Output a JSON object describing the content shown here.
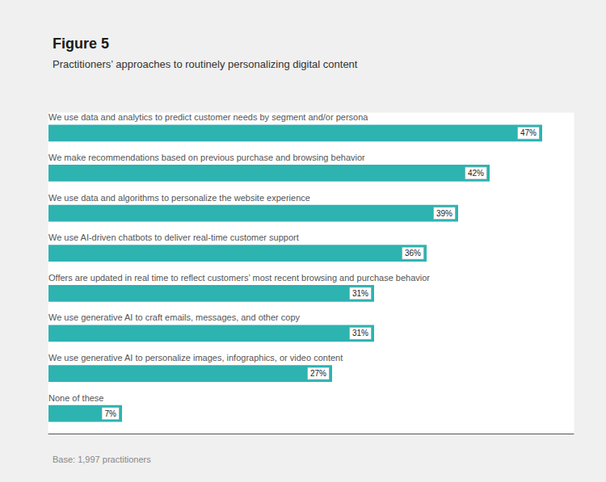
{
  "chart_data": {
    "type": "bar",
    "orientation": "horizontal",
    "title": "Figure 5",
    "subtitle": "Practitioners’ approaches to routinely personalizing digital content",
    "annotations": [
      "Base: 1,997 practitioners"
    ],
    "categories": [
      "We use data and analytics to predict customer needs by segment and/or persona",
      "We make recommendations based on previous purchase and browsing behavior",
      "We use data and algorithms to personalize the website experience",
      "We use AI-driven chatbots to deliver real-time customer support",
      "Offers are updated in real time to reflect customers’ most recent browsing and purchase behavior",
      "We use generative AI to craft emails, messages, and other copy",
      "We use generative AI to personalize images, infographics, or video content",
      "None of these"
    ],
    "values": [
      47,
      42,
      39,
      36,
      31,
      31,
      27,
      7
    ],
    "value_labels": [
      "47%",
      "42%",
      "39%",
      "36%",
      "31%",
      "31%",
      "27%",
      "7%"
    ],
    "data_labels": true,
    "color": "#2db3b0",
    "xlim": [
      0,
      50
    ],
    "grid": false,
    "tick_labels": "y"
  }
}
